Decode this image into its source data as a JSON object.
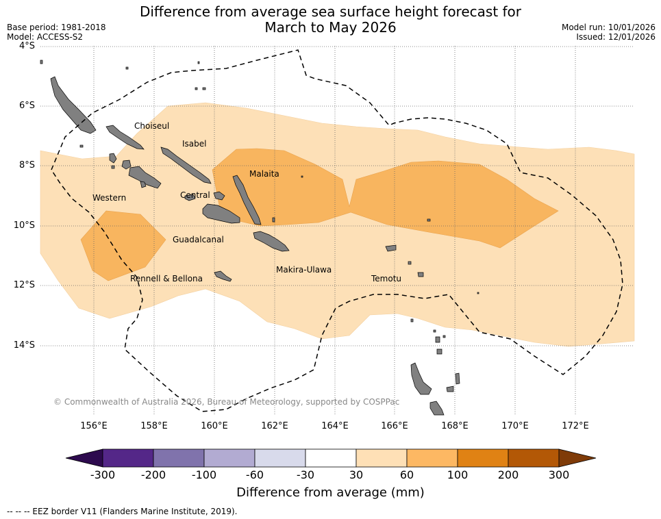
{
  "header": {
    "title_line1": "Difference from average sea surface height forecast for",
    "title_line2": "March to May 2026",
    "base_period": "Base period: 1981-2018",
    "model": "Model: ACCESS-S2",
    "model_run": "Model run: 10/01/2026",
    "issued": "Issued: 12/01/2026"
  },
  "map": {
    "lat_labels": [
      "4°S",
      "6°S",
      "8°S",
      "10°S",
      "12°S",
      "14°S"
    ],
    "lon_labels": [
      "156°E",
      "158°E",
      "160°E",
      "162°E",
      "164°E",
      "166°E",
      "168°E",
      "170°E",
      "172°E"
    ],
    "province_labels": {
      "choiseul": "Choiseul",
      "isabel": "Isabel",
      "malaita": "Malaita",
      "western": "Western",
      "central": "Central",
      "guadalcanal": "Guadalcanal",
      "rennell": "Rennell & Bellona",
      "makira": "Makira-Ulawa",
      "temotu": "Temotu"
    },
    "copyright": "© Commonwealth of Australia 2026, Bureau of Meteorology, supported by COSPPac",
    "colors": {
      "ocean": "#ffffff",
      "land": "#808080",
      "band_30_60": "#fde0b7",
      "band_60_100": "#f8b55f",
      "grid": "#666666",
      "eez": "#000000"
    }
  },
  "colorbar": {
    "ticks": [
      "-300",
      "-200",
      "-100",
      "-60",
      "-30",
      "30",
      "60",
      "100",
      "200",
      "300"
    ],
    "colors": [
      "#2d0a4e",
      "#542788",
      "#8073ac",
      "#b2abd2",
      "#d8daeb",
      "#ffffff",
      "#fee0b6",
      "#fdb863",
      "#e08214",
      "#b35806",
      "#7f3b08"
    ],
    "label": "Difference from average (mm)"
  },
  "legend": {
    "eez": "--  --  -- EEZ border V11 (Flanders Marine Institute, 2019)."
  }
}
